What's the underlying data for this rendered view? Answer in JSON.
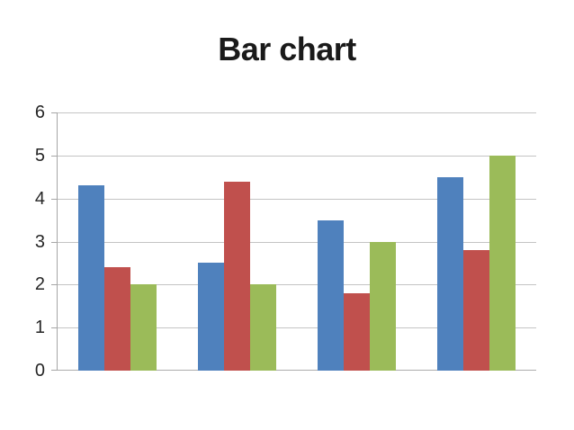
{
  "chart_data": {
    "type": "bar",
    "title": "Bar chart",
    "categories": [
      "",
      "",
      "",
      ""
    ],
    "series": [
      {
        "color": "#4F81BD",
        "values": [
          4.3,
          2.5,
          3.5,
          4.5
        ]
      },
      {
        "color": "#C0504D",
        "values": [
          2.4,
          4.4,
          1.8,
          2.8
        ]
      },
      {
        "color": "#9BBB59",
        "values": [
          2.0,
          2.0,
          3.0,
          5.0
        ]
      }
    ],
    "xlabel": "",
    "ylabel": "",
    "ylim": [
      0,
      6
    ],
    "yticks": [
      0,
      1,
      2,
      3,
      4,
      5,
      6
    ],
    "grid": true,
    "legend": false
  },
  "colors": {
    "background": "#FFFFFF",
    "gridline": "#C4C4C4",
    "baseline": "#ADADAD",
    "axis": "#A6A6A6",
    "title": "#1A1A1A",
    "tick_label": "#262626"
  }
}
